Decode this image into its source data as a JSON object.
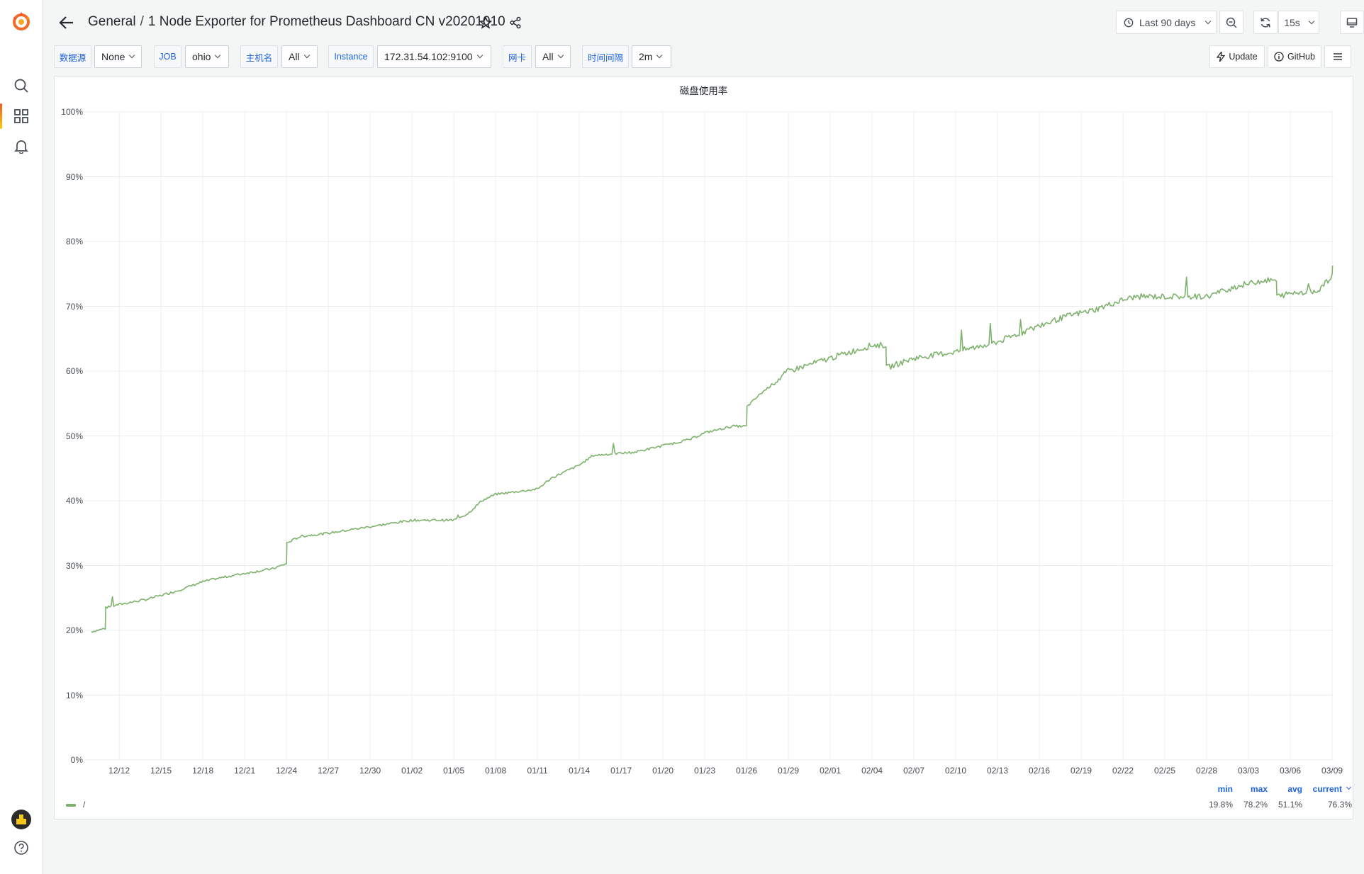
{
  "header": {
    "folder": "General",
    "separator": "/",
    "dashboard_title": "1 Node Exporter for Prometheus Dashboard CN v20201010",
    "time_range": "Last 90 days",
    "refresh_interval": "15s"
  },
  "variables": [
    {
      "label": "数据源",
      "value": "None"
    },
    {
      "label": "JOB",
      "value": "ohio"
    },
    {
      "label": "主机名",
      "value": "All"
    },
    {
      "label": "Instance",
      "value": "172.31.54.102:9100"
    },
    {
      "label": "网卡",
      "value": "All"
    },
    {
      "label": "时间间隔",
      "value": "2m"
    }
  ],
  "links": {
    "update": "Update",
    "github": "GitHub"
  },
  "panel": {
    "title": "磁盘使用率",
    "legend": {
      "series_name": "/",
      "columns": [
        "min",
        "max",
        "avg",
        "current"
      ],
      "values": [
        "19.8%",
        "78.2%",
        "51.1%",
        "76.3%"
      ]
    }
  },
  "chart_data": {
    "type": "line",
    "title": "磁盘使用率",
    "y_unit": "%",
    "ylim": [
      0,
      100
    ],
    "y_ticks": [
      "0%",
      "10%",
      "20%",
      "30%",
      "40%",
      "50%",
      "60%",
      "70%",
      "80%",
      "90%",
      "100%"
    ],
    "x_ticks": [
      "12/12",
      "12/15",
      "12/18",
      "12/21",
      "12/24",
      "12/27",
      "12/30",
      "01/02",
      "01/05",
      "01/08",
      "01/11",
      "01/14",
      "01/17",
      "01/20",
      "01/23",
      "01/26",
      "01/29",
      "02/01",
      "02/04",
      "02/07",
      "02/10",
      "02/13",
      "02/16",
      "02/19",
      "02/22",
      "02/25",
      "02/28",
      "03/03",
      "03/06",
      "03/09"
    ],
    "grid": true,
    "legend_placement": "bottom",
    "series": [
      {
        "name": "/",
        "color": "#7eb26d",
        "points": [
          [
            "12/10",
            19.8
          ],
          [
            "12/11",
            20.3
          ],
          [
            "12/11",
            23.5
          ],
          [
            "12/12",
            24.0
          ],
          [
            "12/14",
            24.8
          ],
          [
            "12/16",
            26.0
          ],
          [
            "12/18",
            27.5
          ],
          [
            "12/19",
            28.0
          ],
          [
            "12/21",
            28.8
          ],
          [
            "12/23",
            29.5
          ],
          [
            "12/24",
            30.3
          ],
          [
            "12/24",
            33.5
          ],
          [
            "12/25",
            34.5
          ],
          [
            "12/27",
            35.0
          ],
          [
            "12/30",
            36.0
          ],
          [
            "01/02",
            37.0
          ],
          [
            "01/05",
            37.0
          ],
          [
            "01/06",
            38.0
          ],
          [
            "01/07",
            40.0
          ],
          [
            "01/08",
            41.0
          ],
          [
            "01/11",
            41.8
          ],
          [
            "01/12",
            43.5
          ],
          [
            "01/14",
            45.5
          ],
          [
            "01/15",
            47.0
          ],
          [
            "01/18",
            47.5
          ],
          [
            "01/20",
            48.5
          ],
          [
            "01/22",
            49.5
          ],
          [
            "01/23",
            50.5
          ],
          [
            "01/25",
            51.5
          ],
          [
            "01/26",
            51.5
          ],
          [
            "01/26",
            54.5
          ],
          [
            "01/27",
            56.5
          ],
          [
            "01/29",
            60.0
          ],
          [
            "02/01",
            62.0
          ],
          [
            "02/04",
            64.0
          ],
          [
            "02/05",
            64.0
          ],
          [
            "02/05",
            60.5
          ],
          [
            "02/07",
            62.0
          ],
          [
            "02/10",
            63.0
          ],
          [
            "02/13",
            64.5
          ],
          [
            "02/16",
            67.0
          ],
          [
            "02/18",
            68.5
          ],
          [
            "02/20",
            69.5
          ],
          [
            "02/22",
            71.0
          ],
          [
            "02/23",
            71.5
          ],
          [
            "02/25",
            71.5
          ],
          [
            "02/28",
            71.5
          ],
          [
            "03/02",
            73.0
          ],
          [
            "03/04",
            74.0
          ],
          [
            "03/05",
            74.0
          ],
          [
            "03/05",
            71.5
          ],
          [
            "03/06",
            72.0
          ],
          [
            "03/08",
            72.5
          ],
          [
            "03/09",
            74.5
          ],
          [
            "03/09",
            76.3
          ]
        ]
      }
    ]
  }
}
